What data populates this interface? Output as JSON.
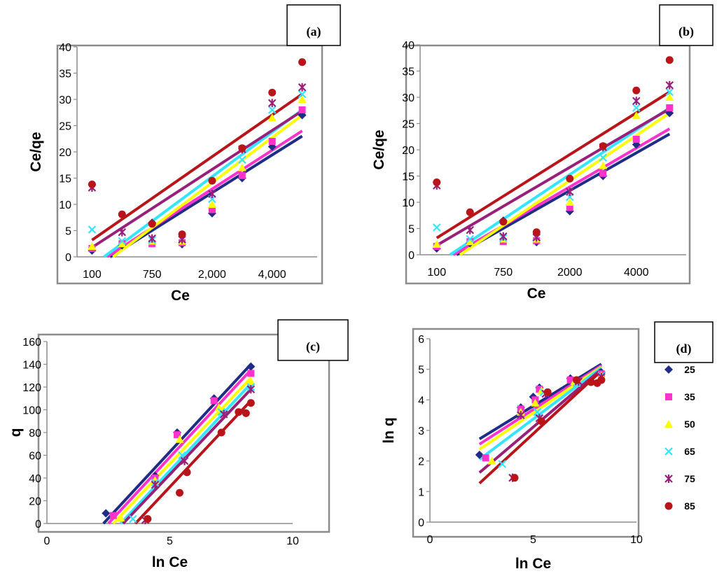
{
  "series_colors": [
    "#1F2D86",
    "#FF33CC",
    "#FFFF00",
    "#33E5FF",
    "#99207A",
    "#B8141A"
  ],
  "legend": {
    "entries": [
      "25",
      "35",
      "50",
      "65",
      "75",
      "85"
    ],
    "markers": [
      "diamond",
      "square",
      "triangle",
      "x",
      "star",
      "circle"
    ]
  },
  "chart_data": [
    {
      "type": "scatter",
      "panel_label": "(a)",
      "xlabel": "Ce",
      "ylabel": "Ce/qe",
      "x_scale": "categorical-log",
      "x_tick_labels": [
        "100",
        "750",
        "2,000",
        "4,000"
      ],
      "x_tick_positions": [
        1,
        3,
        5,
        7
      ],
      "xlim": [
        0.5,
        8.5
      ],
      "ylim": [
        0,
        40
      ],
      "y_ticks": [
        0,
        5,
        10,
        15,
        20,
        25,
        30,
        35,
        40
      ],
      "grid": false,
      "series": [
        {
          "name": "25",
          "x": [
            1,
            2,
            3,
            4,
            5,
            6,
            7,
            8
          ],
          "y": [
            1.2,
            2.2,
            6.5,
            2.4,
            8.3,
            15.0,
            21.0,
            27.0
          ],
          "fit": [
            [
              1.6,
              0
            ],
            [
              8,
              23.0
            ]
          ]
        },
        {
          "name": "35",
          "x": [
            1,
            2,
            3,
            4,
            5,
            6,
            7,
            8
          ],
          "y": [
            1.6,
            2.5,
            2.5,
            2.7,
            9.0,
            15.5,
            22.0,
            28.0
          ],
          "fit": [
            [
              1.5,
              0
            ],
            [
              8,
              24.0
            ]
          ]
        },
        {
          "name": "50",
          "x": [
            1,
            2,
            3,
            4,
            5,
            6,
            7,
            8
          ],
          "y": [
            2.0,
            2.5,
            3.0,
            3.0,
            10.0,
            17.0,
            26.5,
            30.0
          ],
          "fit": [
            [
              1.7,
              0
            ],
            [
              8,
              27.0
            ]
          ]
        },
        {
          "name": "65",
          "x": [
            1,
            2,
            3,
            4,
            5,
            6,
            7,
            8
          ],
          "y": [
            5.2,
            3.0,
            3.2,
            3.3,
            11.0,
            18.5,
            28.0,
            31.0
          ],
          "fit": [
            [
              1.4,
              0
            ],
            [
              8,
              28.0
            ]
          ]
        },
        {
          "name": "75",
          "x": [
            1,
            2,
            3,
            4,
            5,
            6,
            7,
            8
          ],
          "y": [
            13.2,
            4.7,
            3.5,
            3.3,
            12.0,
            20.5,
            29.3,
            32.3
          ],
          "fit": [
            [
              1,
              1.8
            ],
            [
              8,
              27.8
            ]
          ]
        },
        {
          "name": "85",
          "x": [
            1,
            2,
            3,
            4,
            5,
            6,
            7,
            8
          ],
          "y": [
            13.8,
            8.1,
            6.3,
            4.3,
            14.5,
            20.7,
            31.3,
            37.1
          ],
          "fit": [
            [
              1,
              3.2
            ],
            [
              8,
              31.0
            ]
          ]
        }
      ]
    },
    {
      "type": "scatter",
      "panel_label": "(b)",
      "xlabel": "Ce",
      "ylabel": "Ce/qe",
      "x_scale": "categorical-log",
      "x_tick_labels": [
        "100",
        "750",
        "2000",
        "4000"
      ],
      "x_tick_positions": [
        1,
        3,
        5,
        7
      ],
      "xlim": [
        0.5,
        8.5
      ],
      "ylim": [
        0,
        40
      ],
      "y_ticks": [
        0,
        5,
        10,
        15,
        20,
        25,
        30,
        35,
        40
      ],
      "grid": false,
      "series": [
        {
          "name": "25",
          "x": [
            1,
            2,
            3,
            4,
            5,
            6,
            7,
            8
          ],
          "y": [
            1.2,
            2.2,
            6.5,
            2.4,
            8.3,
            15.0,
            21.0,
            27.0
          ],
          "fit": [
            [
              1.6,
              0
            ],
            [
              8,
              23.0
            ]
          ]
        },
        {
          "name": "35",
          "x": [
            1,
            2,
            3,
            4,
            5,
            6,
            7,
            8
          ],
          "y": [
            1.6,
            2.5,
            2.5,
            2.7,
            9.0,
            15.5,
            22.0,
            28.0
          ],
          "fit": [
            [
              1.5,
              0
            ],
            [
              8,
              24.0
            ]
          ]
        },
        {
          "name": "50",
          "x": [
            1,
            2,
            3,
            4,
            5,
            6,
            7,
            8
          ],
          "y": [
            2.0,
            2.5,
            3.0,
            3.0,
            10.0,
            17.0,
            26.5,
            30.0
          ],
          "fit": [
            [
              1.7,
              0
            ],
            [
              8,
              27.0
            ]
          ]
        },
        {
          "name": "65",
          "x": [
            1,
            2,
            3,
            4,
            5,
            6,
            7,
            8
          ],
          "y": [
            5.2,
            3.0,
            3.2,
            3.3,
            11.0,
            18.5,
            28.0,
            31.0
          ],
          "fit": [
            [
              1.4,
              0
            ],
            [
              8,
              28.0
            ]
          ]
        },
        {
          "name": "75",
          "x": [
            1,
            2,
            3,
            4,
            5,
            6,
            7,
            8
          ],
          "y": [
            13.2,
            4.7,
            3.5,
            3.3,
            12.0,
            20.5,
            29.3,
            32.3
          ],
          "fit": [
            [
              1,
              1.8
            ],
            [
              8,
              27.8
            ]
          ]
        },
        {
          "name": "85",
          "x": [
            1,
            2,
            3,
            4,
            5,
            6,
            7,
            8
          ],
          "y": [
            13.8,
            8.1,
            6.3,
            4.3,
            14.5,
            20.7,
            31.3,
            37.1
          ],
          "fit": [
            [
              1,
              3.2
            ],
            [
              8,
              31.0
            ]
          ]
        }
      ]
    },
    {
      "type": "scatter",
      "panel_label": "(c)",
      "xlabel": "ln Ce",
      "ylabel": "q",
      "x_tick_labels": [
        "0",
        "5",
        "10"
      ],
      "x_tick_positions": [
        0,
        5,
        10
      ],
      "xlim": [
        0,
        10
      ],
      "ylim": [
        0,
        160
      ],
      "y_ticks": [
        0,
        20,
        40,
        60,
        80,
        100,
        120,
        140,
        160
      ],
      "grid": false,
      "series": [
        {
          "name": "25",
          "x": [
            2.4,
            4.4,
            5.3,
            6.8,
            8.3
          ],
          "y": [
            9,
            42,
            80,
            110,
            138
          ],
          "fit": [
            [
              2.3,
              0
            ],
            [
              8.3,
              140
            ]
          ]
        },
        {
          "name": "35",
          "x": [
            2.7,
            4.4,
            5.3,
            6.8,
            8.3
          ],
          "y": [
            7,
            40,
            78,
            108,
            132
          ],
          "fit": [
            [
              2.5,
              0
            ],
            [
              8.3,
              135
            ]
          ]
        },
        {
          "name": "50",
          "x": [
            3.0,
            4.4,
            5.4,
            7.0,
            8.3
          ],
          "y": [
            5,
            38,
            74,
            102,
            125
          ],
          "fit": [
            [
              2.7,
              0
            ],
            [
              8.3,
              128
            ]
          ]
        },
        {
          "name": "65",
          "x": [
            3.5,
            4.4,
            5.5,
            7.1,
            8.3
          ],
          "y": [
            4,
            36,
            60,
            98,
            120
          ],
          "fit": [
            [
              3.0,
              0
            ],
            [
              8.3,
              123
            ]
          ]
        },
        {
          "name": "75",
          "x": [
            4.0,
            4.4,
            5.6,
            7.2,
            8.3
          ],
          "y": [
            3,
            34,
            55,
            96,
            118
          ],
          "fit": [
            [
              3.1,
              0
            ],
            [
              8.3,
              118
            ]
          ]
        },
        {
          "name": "85",
          "x": [
            4.1,
            5.4,
            5.7,
            7.1,
            7.8,
            8.1,
            8.3
          ],
          "y": [
            4,
            27,
            45,
            80,
            98,
            97,
            106
          ],
          "fit": [
            [
              3.6,
              0
            ],
            [
              8.3,
              108
            ]
          ]
        }
      ]
    },
    {
      "type": "scatter",
      "panel_label": "(d)",
      "xlabel": "ln Ce",
      "ylabel": "ln q",
      "x_tick_labels": [
        "0",
        "5",
        "10"
      ],
      "x_tick_positions": [
        0,
        5,
        10
      ],
      "xlim": [
        0,
        10
      ],
      "ylim": [
        0,
        6
      ],
      "y_ticks": [
        0,
        1,
        2,
        3,
        4,
        5,
        6
      ],
      "legend_position": "right",
      "grid": false,
      "series": [
        {
          "name": "25",
          "x": [
            2.4,
            4.4,
            5.0,
            5.3,
            6.8,
            8.3
          ],
          "y": [
            2.2,
            3.75,
            4.1,
            4.4,
            4.7,
            4.9
          ],
          "fit": [
            [
              2.4,
              2.72
            ],
            [
              8.3,
              5.17
            ]
          ]
        },
        {
          "name": "35",
          "x": [
            2.7,
            4.4,
            5.1,
            5.3,
            6.8,
            8.3
          ],
          "y": [
            2.1,
            3.7,
            4.0,
            4.35,
            4.65,
            4.85
          ],
          "fit": [
            [
              2.4,
              2.55
            ],
            [
              8.3,
              5.12
            ]
          ]
        },
        {
          "name": "50",
          "x": [
            3.0,
            4.4,
            5.1,
            5.4,
            7.0,
            8.3
          ],
          "y": [
            2.0,
            3.6,
            3.9,
            4.3,
            4.6,
            4.8
          ],
          "fit": [
            [
              2.4,
              2.38
            ],
            [
              8.3,
              5.08
            ]
          ]
        },
        {
          "name": "65",
          "x": [
            3.5,
            4.4,
            5.2,
            5.5,
            7.1,
            8.3
          ],
          "y": [
            1.9,
            3.5,
            3.6,
            4.25,
            4.55,
            4.78
          ],
          "fit": [
            [
              2.4,
              2.05
            ],
            [
              8.3,
              5.05
            ]
          ]
        },
        {
          "name": "75",
          "x": [
            4.0,
            4.4,
            5.3,
            5.6,
            7.2,
            8.3
          ],
          "y": [
            1.45,
            3.5,
            3.4,
            4.2,
            4.6,
            4.75
          ],
          "fit": [
            [
              2.4,
              1.62
            ],
            [
              8.3,
              5.0
            ]
          ]
        },
        {
          "name": "85",
          "x": [
            4.1,
            5.4,
            5.7,
            7.1,
            7.8,
            8.1,
            8.3
          ],
          "y": [
            1.45,
            3.3,
            4.25,
            4.65,
            4.58,
            4.55,
            4.65
          ],
          "fit": [
            [
              2.4,
              1.27
            ],
            [
              8.3,
              4.95
            ]
          ]
        }
      ]
    }
  ]
}
